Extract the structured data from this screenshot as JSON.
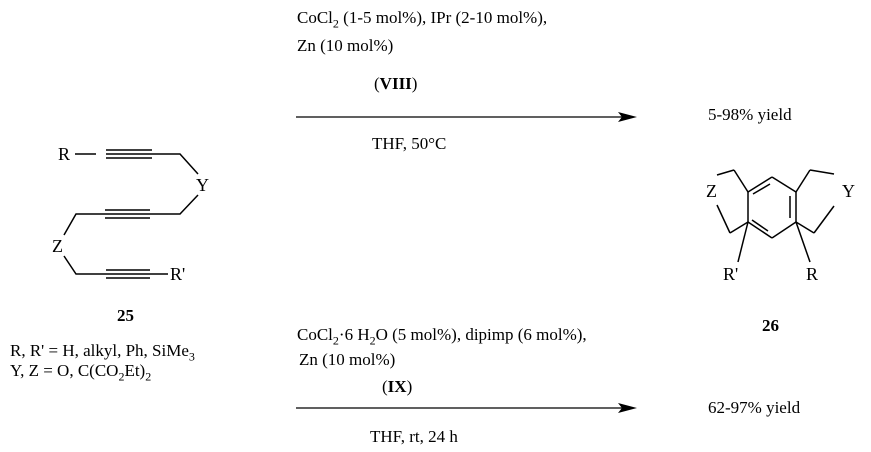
{
  "reaction1": {
    "conditions_line1_pre": "CoCl",
    "conditions_line1_sub": "2",
    "conditions_line1_post": " (1-5 mol%), IPr (2-10 mol%),",
    "conditions_line2": "Zn (10 mol%)",
    "catalyst_label_open": "(",
    "catalyst_label": "VIII",
    "catalyst_label_close": ")",
    "solvent": "THF, 50°C",
    "yield": "5-98% yield"
  },
  "reaction2": {
    "conditions_line1_pre": "CoCl",
    "conditions_line1_sub": "2",
    "conditions_line1_mid": "·6 H",
    "conditions_line1_sub2": "2",
    "conditions_line1_post": "O (5 mol%), dipimp (6 mol%),",
    "conditions_line2": "Zn (10 mol%)",
    "catalyst_label_open": "(",
    "catalyst_label": "IX",
    "catalyst_label_close": ")",
    "solvent": "THF, rt, 24 h",
    "yield": "62-97% yield"
  },
  "substrate": {
    "number": "25",
    "atom_R": "R",
    "atom_Y": "Y",
    "atom_Z": "Z",
    "atom_Rp": "R'",
    "scope_line1_pre": "R, R' = H, alkyl, Ph, SiMe",
    "scope_line1_sub": "3",
    "scope_line2_pre": "Y, Z = O, C(CO",
    "scope_line2_sub": "2",
    "scope_line2_mid": "Et)",
    "scope_line2_sub2": "2"
  },
  "product": {
    "number": "26",
    "atom_Z": "Z",
    "atom_Y": "Y",
    "atom_Rp": "R'",
    "atom_R": "R"
  }
}
